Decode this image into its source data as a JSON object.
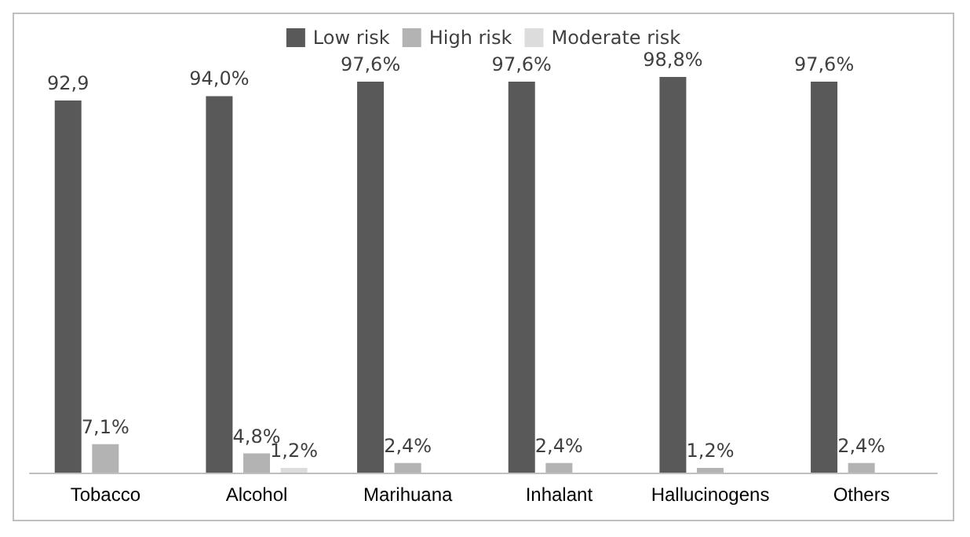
{
  "chart_data": {
    "type": "bar",
    "categories": [
      "Tobacco",
      "Alcohol",
      "Marihuana",
      "Inhalant",
      "Hallucinogens",
      "Others"
    ],
    "series": [
      {
        "name": "Low risk",
        "color": "#595959",
        "values": [
          92.9,
          94.0,
          97.6,
          97.6,
          98.8,
          97.6
        ],
        "value_labels": [
          "92,9",
          "94,0%",
          "97,6%",
          "97,6%",
          "98,8%",
          "97,6%"
        ]
      },
      {
        "name": "High risk",
        "color": "#b3b3b3",
        "values": [
          7.1,
          4.8,
          2.4,
          2.4,
          1.2,
          2.4
        ],
        "value_labels": [
          "7,1%",
          "4,8%",
          "2,4%",
          "2,4%",
          "1,2%",
          "2,4%"
        ]
      },
      {
        "name": "Moderate risk",
        "color": "#dcdcdc",
        "values": [
          null,
          1.2,
          null,
          null,
          null,
          null
        ],
        "value_labels": [
          null,
          "1,2%",
          null,
          null,
          null,
          null
        ]
      }
    ],
    "legend": "top"
  }
}
